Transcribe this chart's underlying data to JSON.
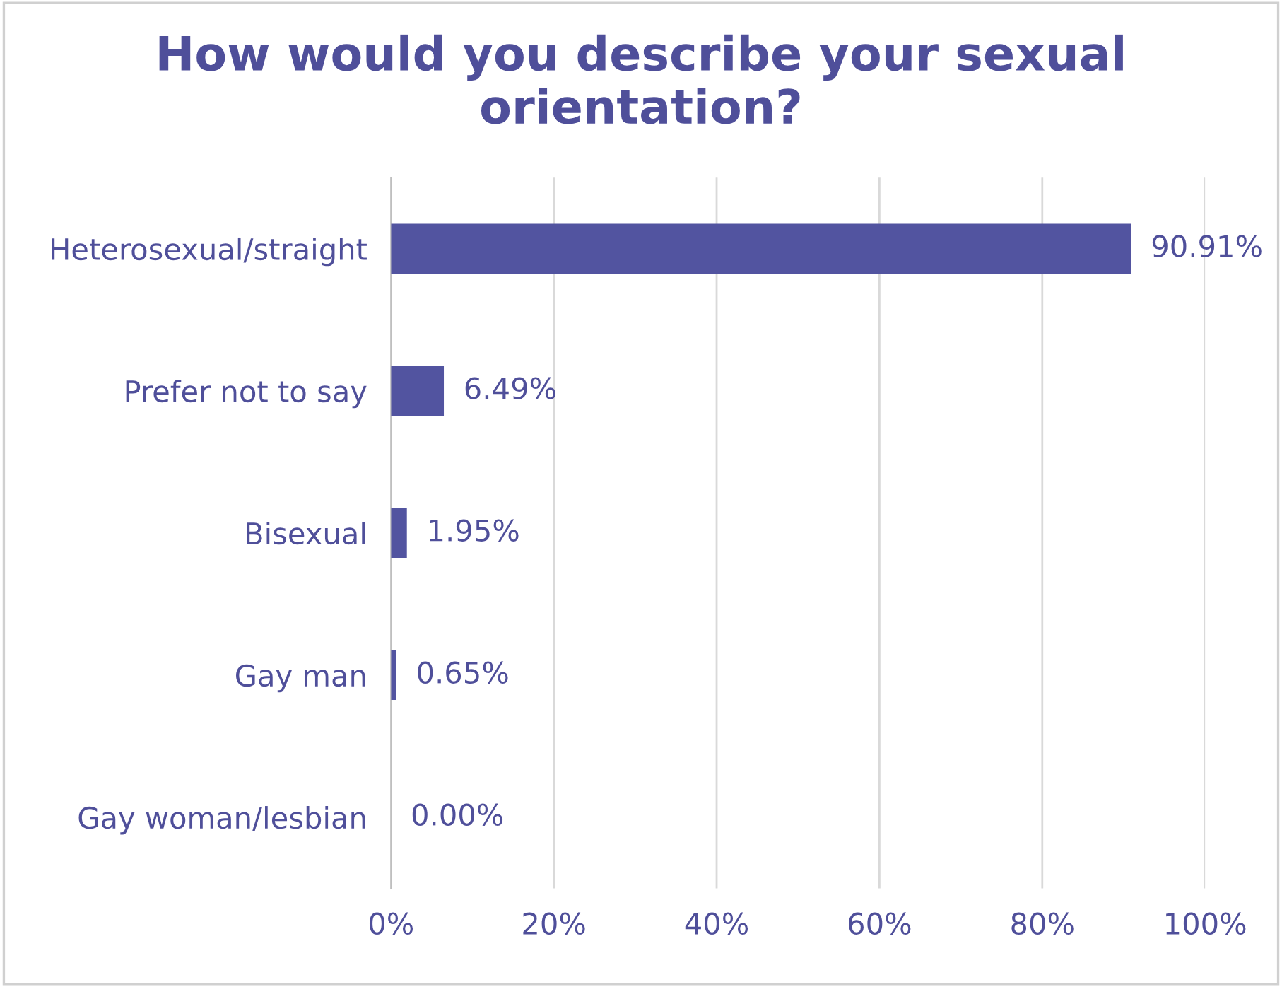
{
  "chart_data": {
    "type": "bar",
    "orientation": "horizontal",
    "title": "How would you describe your sexual orientation?",
    "categories": [
      "Heterosexual/straight",
      "Prefer not to say",
      "Bisexual",
      "Gay man",
      "Gay woman/lesbian"
    ],
    "values": [
      90.91,
      6.49,
      1.95,
      0.65,
      0.0
    ],
    "value_labels": [
      "90.91%",
      "6.49%",
      "1.95%",
      "0.65%",
      "0.00%"
    ],
    "color": "#5254a0",
    "xlim": [
      0,
      100
    ],
    "xticks": [
      {
        "value": 0,
        "label": "0%"
      },
      {
        "value": 20,
        "label": "20%"
      },
      {
        "value": 40,
        "label": "40%"
      },
      {
        "value": 60,
        "label": "60%"
      },
      {
        "value": 80,
        "label": "80%"
      },
      {
        "value": 100,
        "label": "100%"
      }
    ],
    "grid": "x"
  }
}
